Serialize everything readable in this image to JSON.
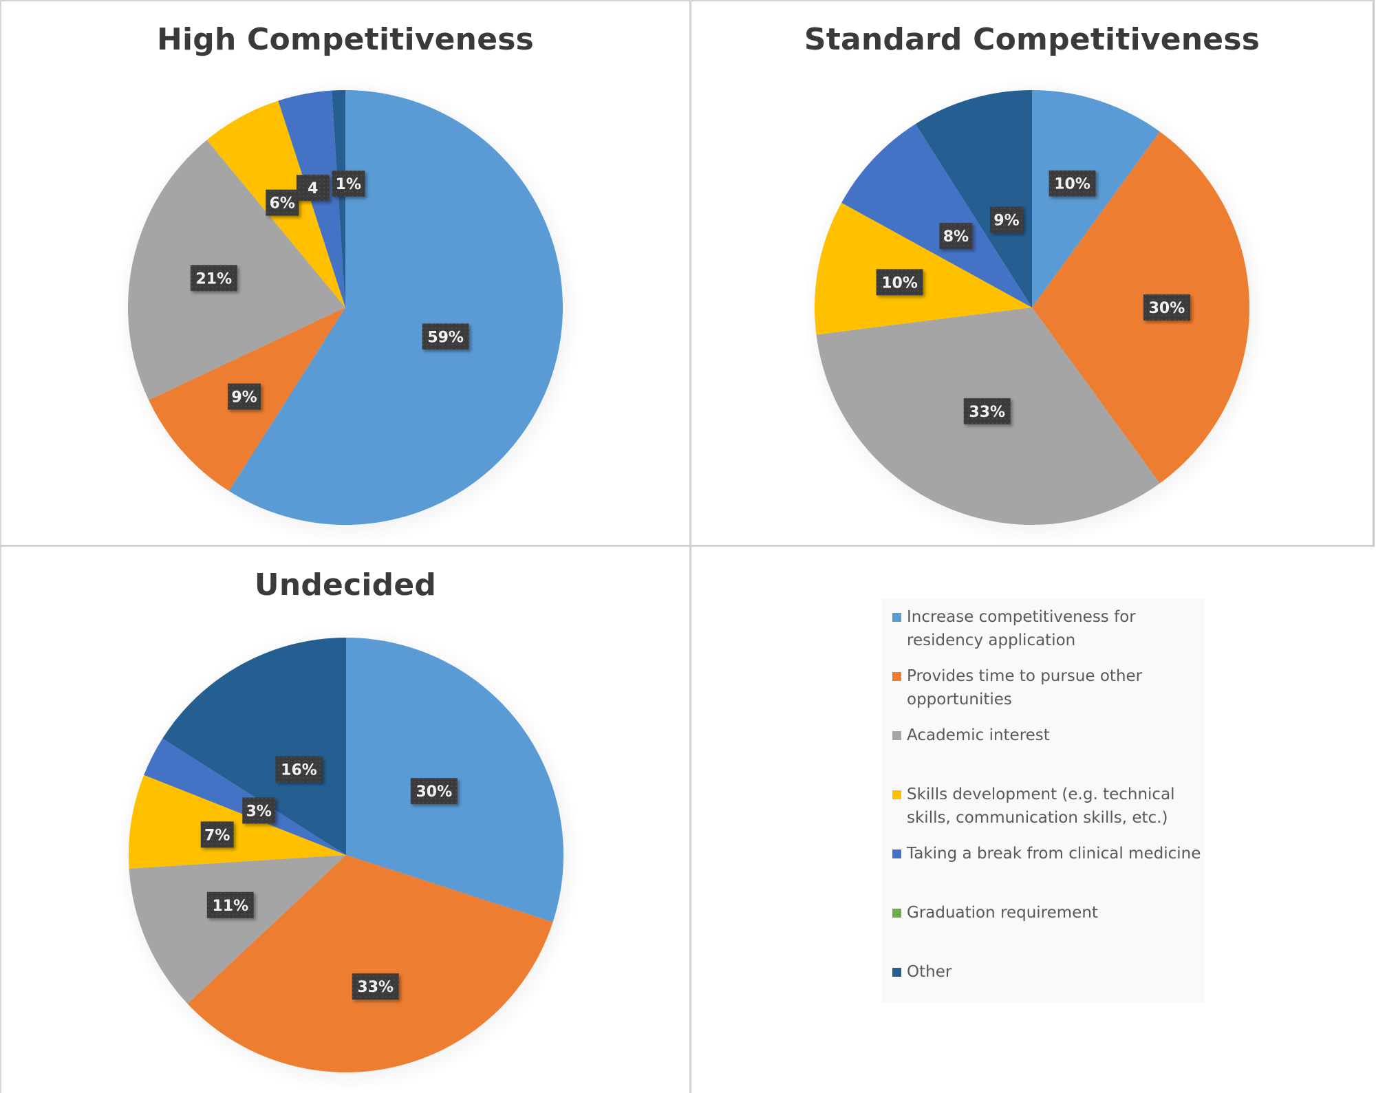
{
  "chart_data": [
    {
      "type": "pie",
      "title": "High Competitiveness",
      "categories": [
        "Increase competitiveness for residency application",
        "Provides time to pursue other opportunities",
        "Academic interest",
        "Skills development (e.g. technical skills, communication skills, etc.)",
        "Taking a break from clinical medicine",
        "Graduation requirement",
        "Other"
      ],
      "values": [
        59,
        9,
        21,
        6,
        4,
        0,
        1
      ],
      "labels": [
        "59%",
        "9%",
        "21%",
        "6%",
        "4",
        null,
        "1%"
      ]
    },
    {
      "type": "pie",
      "title": "Standard Competitiveness",
      "categories": [
        "Increase competitiveness for residency application",
        "Provides time to pursue other opportunities",
        "Academic interest",
        "Skills development (e.g. technical skills, communication skills, etc.)",
        "Taking a break from clinical medicine",
        "Graduation requirement",
        "Other"
      ],
      "values": [
        10,
        30,
        33,
        10,
        8,
        0,
        9
      ],
      "labels": [
        "10%",
        "30%",
        "33%",
        "10%",
        "8%",
        null,
        "9%"
      ]
    },
    {
      "type": "pie",
      "title": "Undecided",
      "categories": [
        "Increase competitiveness for residency application",
        "Provides time to pursue other opportunities",
        "Academic interest",
        "Skills development (e.g. technical skills, communication skills, etc.)",
        "Taking a break from clinical medicine",
        "Graduation requirement",
        "Other"
      ],
      "values": [
        30,
        33,
        11,
        7,
        3,
        0,
        16
      ],
      "labels": [
        "30%",
        "33%",
        "11%",
        "7%",
        "3%",
        null,
        "16%"
      ]
    }
  ],
  "legend": {
    "placement": "bottom-right",
    "items": [
      {
        "label": "Increase competitiveness for residency application",
        "color": "#5B9BD5"
      },
      {
        "label": "Provides time to pursue other opportunities",
        "color": "#ED7D31"
      },
      {
        "label": "Academic interest",
        "color": "#A5A5A5"
      },
      {
        "label": "Skills development (e.g. technical skills, communication skills, etc.)",
        "color": "#FFC000"
      },
      {
        "label": "Taking a break from clinical medicine",
        "color": "#4472C4"
      },
      {
        "label": "Graduation requirement",
        "color": "#70AD47"
      },
      {
        "label": "Other",
        "color": "#255E91"
      }
    ]
  }
}
